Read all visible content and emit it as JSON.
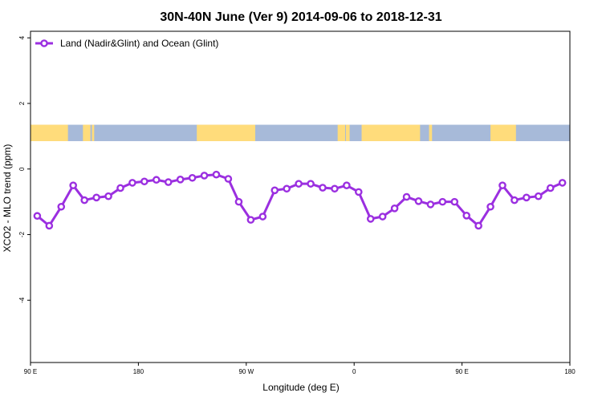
{
  "chart_data": {
    "type": "line",
    "title": "30N-40N June (Ver 9)   2014-09-06 to 2018-12-31",
    "xlabel": "Longitude (deg E)",
    "ylabel": "XCO2 - MLO trend (ppm)",
    "xlim": [
      90,
      450
    ],
    "ylim": [
      -5.9,
      4.2
    ],
    "x_ticks": [
      {
        "value": 90,
        "label": "90 E"
      },
      {
        "value": 162,
        "label": "180"
      },
      {
        "value": 234,
        "label": "90 W"
      },
      {
        "value": 306,
        "label": "0"
      },
      {
        "value": 378,
        "label": "90 E"
      },
      {
        "value": 450,
        "label": "180"
      }
    ],
    "y_ticks": [
      {
        "value": 4,
        "label": "4"
      },
      {
        "value": 2,
        "label": "2"
      },
      {
        "value": 0,
        "label": "0"
      },
      {
        "value": -2,
        "label": "-2"
      },
      {
        "value": -4,
        "label": "-4"
      }
    ],
    "series": [
      {
        "name": "Land (Nadir&Glint) and Ocean (Glint)",
        "color": "#9b2fe0",
        "x": [
          94.5,
          102.5,
          110.5,
          118.5,
          126,
          134,
          142,
          150,
          158,
          166,
          174,
          182,
          190,
          198,
          206,
          214,
          222,
          229,
          237,
          245,
          253,
          261,
          269,
          277,
          285,
          293,
          301,
          309,
          317,
          325,
          333,
          341,
          349,
          357,
          365,
          373,
          381,
          389,
          397,
          405,
          413,
          421,
          429,
          437,
          445
        ],
        "values": [
          -1.43,
          -1.73,
          -1.15,
          -0.5,
          -0.95,
          -0.87,
          -0.83,
          -0.58,
          -0.42,
          -0.38,
          -0.33,
          -0.4,
          -0.32,
          -0.27,
          -0.2,
          -0.17,
          -0.3,
          -1.0,
          -1.55,
          -1.45,
          -0.65,
          -0.6,
          -0.45,
          -0.45,
          -0.57,
          -0.6,
          -0.5,
          -0.7,
          -1.52,
          -1.45,
          -1.2,
          -0.85,
          -0.98,
          -1.08,
          -1.0,
          -1.0,
          -1.42,
          -1.73,
          -1.15,
          -0.5,
          -0.95,
          -0.87,
          -0.83,
          -0.58,
          -0.42
        ]
      }
    ],
    "legend": "top-left",
    "grid": false,
    "background_strip": {
      "description": "world map strip 30N-40N",
      "land_color": "#ffdc7b",
      "ocean_color": "#a7bad9",
      "y_range": [
        0.85,
        1.35
      ],
      "land_spans": [
        [
          90,
          115
        ],
        [
          125,
          130
        ],
        [
          131,
          132.5
        ],
        [
          201,
          240
        ],
        [
          295,
          300
        ],
        [
          300.5,
          303
        ],
        [
          311,
          350
        ],
        [
          356,
          358
        ],
        [
          397,
          414
        ]
      ]
    }
  }
}
